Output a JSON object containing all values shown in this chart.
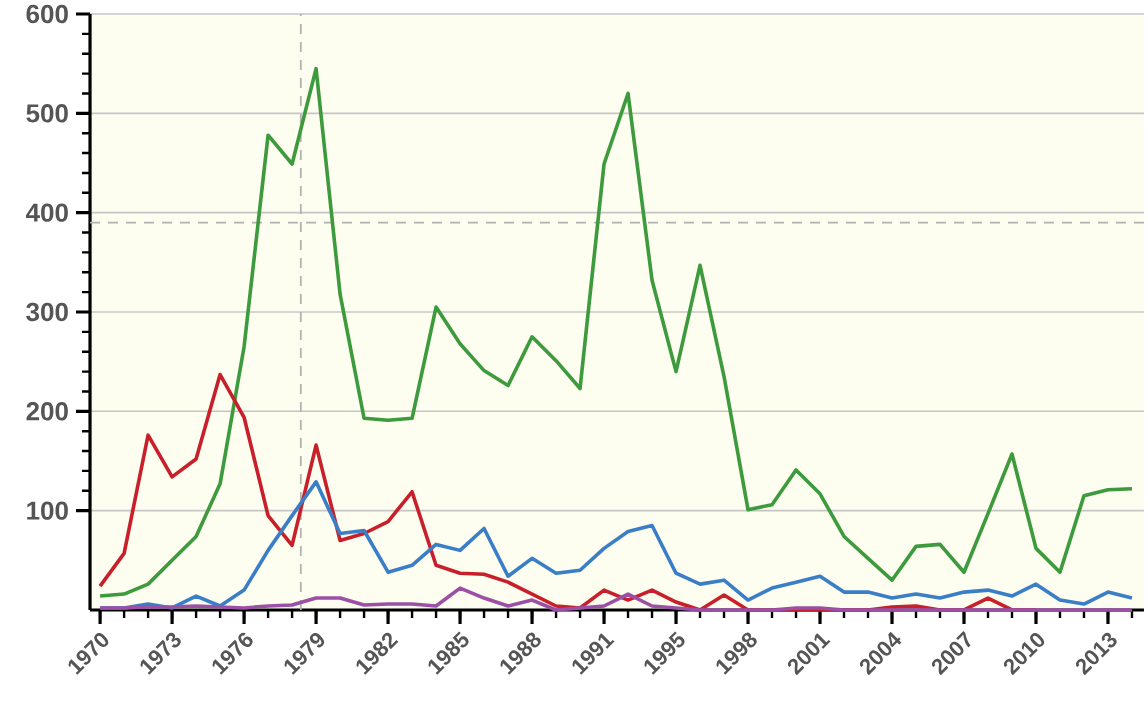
{
  "chart_data": {
    "type": "line",
    "categories": [
      "1970",
      null,
      null,
      "1973",
      null,
      null,
      "1976",
      null,
      null,
      "1979",
      null,
      null,
      "1982",
      null,
      null,
      "1985",
      null,
      null,
      "1988",
      null,
      null,
      "1991",
      null,
      null,
      "1995",
      null,
      null,
      "1998",
      null,
      null,
      "2001",
      null,
      null,
      "2004",
      null,
      null,
      "2007",
      null,
      null,
      "2010",
      null,
      null,
      "2013",
      null
    ],
    "series": [
      {
        "color": "#3d9a3d",
        "values": [
          14,
          16,
          26,
          50,
          74,
          127,
          265,
          478,
          449,
          545,
          318,
          193,
          191,
          193,
          305,
          268,
          241,
          226,
          275,
          251,
          223,
          449,
          520,
          332,
          240,
          347,
          235,
          101,
          106,
          141,
          117,
          74,
          52,
          30,
          64,
          66,
          38,
          97,
          157,
          62,
          38,
          115,
          121,
          122
        ]
      },
      {
        "color": "#c8202a",
        "values": [
          24,
          57,
          176,
          134,
          152,
          237,
          194,
          95,
          65,
          166,
          70,
          77,
          89,
          119,
          45,
          37,
          36,
          28,
          16,
          4,
          2,
          20,
          10,
          20,
          8,
          0,
          15,
          0,
          0,
          0,
          0,
          0,
          0,
          3,
          4,
          0,
          0,
          12,
          0,
          0,
          null,
          null,
          null,
          null
        ]
      },
      {
        "color": "#3a7ec8",
        "values": [
          2,
          2,
          6,
          2,
          14,
          4,
          20,
          60,
          95,
          129,
          77,
          80,
          38,
          45,
          66,
          60,
          82,
          34,
          52,
          37,
          40,
          62,
          79,
          85,
          37,
          26,
          30,
          10,
          22,
          28,
          34,
          18,
          18,
          12,
          16,
          12,
          18,
          20,
          14,
          26,
          10,
          6,
          18,
          12
        ]
      },
      {
        "color": "#9b4fa5",
        "values": [
          2,
          2,
          3,
          3,
          4,
          3,
          2,
          4,
          5,
          12,
          12,
          5,
          6,
          6,
          4,
          22,
          12,
          4,
          10,
          0,
          2,
          4,
          16,
          4,
          2,
          0,
          0,
          0,
          0,
          2,
          2,
          0,
          0,
          0,
          0,
          0,
          0,
          0,
          0,
          0,
          0,
          0,
          0,
          0
        ]
      }
    ],
    "ylim": [
      0,
      600
    ],
    "yticks": [
      100,
      200,
      300,
      400,
      500,
      600
    ],
    "grid": "y",
    "ref_lines": [
      {
        "axis": "y",
        "value": 390
      }
    ]
  }
}
